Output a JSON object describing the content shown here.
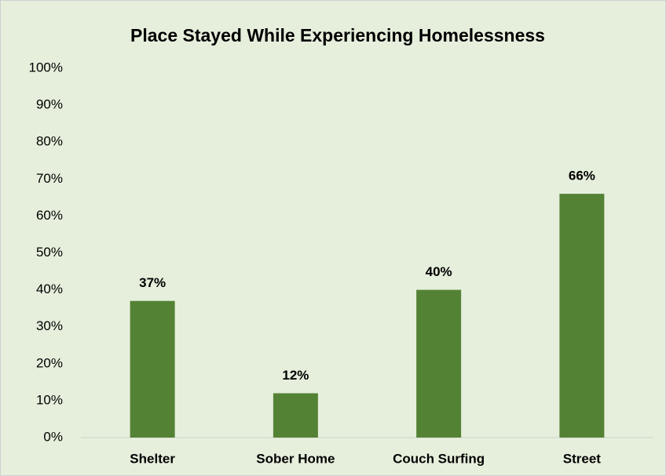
{
  "chart_data": {
    "type": "bar",
    "title": "Place Stayed While Experiencing Homelessness",
    "categories": [
      "Shelter",
      "Sober Home",
      "Couch Surfing",
      "Street"
    ],
    "values": [
      37,
      12,
      40,
      66
    ],
    "value_labels": [
      "37%",
      "12%",
      "40%",
      "66%"
    ],
    "color": "#548235",
    "ylim": [
      0,
      100
    ],
    "yticks": [
      {
        "value": 0,
        "label": "0%"
      },
      {
        "value": 10,
        "label": "10%"
      },
      {
        "value": 20,
        "label": "20%"
      },
      {
        "value": 30,
        "label": "30%"
      },
      {
        "value": 40,
        "label": "40%"
      },
      {
        "value": 50,
        "label": "50%"
      },
      {
        "value": 60,
        "label": "60%"
      },
      {
        "value": 70,
        "label": "70%"
      },
      {
        "value": 80,
        "label": "80%"
      },
      {
        "value": 90,
        "label": "90%"
      },
      {
        "value": 100,
        "label": "100%"
      }
    ],
    "grid": false
  }
}
